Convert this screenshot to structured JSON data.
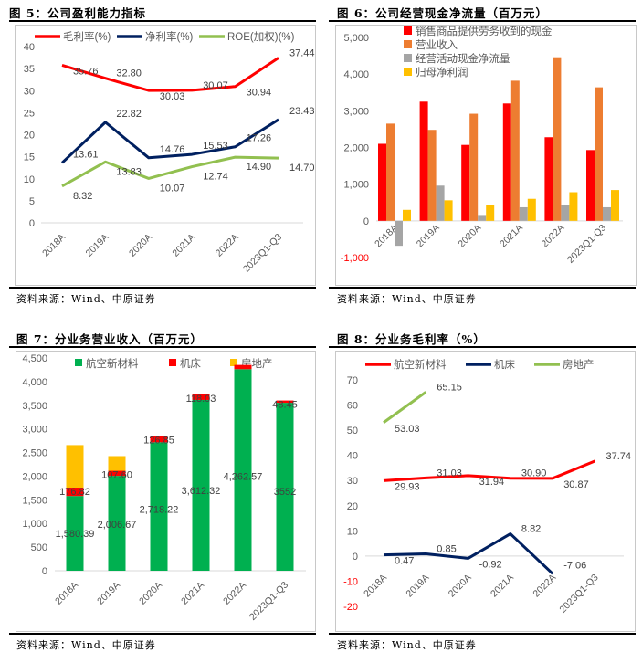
{
  "panels": [
    {
      "title": "图 5：公司盈利能力指标",
      "source": "资料来源：Wind、中原证券"
    },
    {
      "title": "图 6：公司经营现金净流量（百万元）",
      "source": "资料来源：Wind、中原证券"
    },
    {
      "title": "图 7：分业务营业收入（百万元）",
      "source": "资料来源：Wind、中原证券"
    },
    {
      "title": "图 8：分业务毛利率（%）",
      "source": "资料来源：Wind、中原证券"
    }
  ],
  "chart_data": [
    {
      "type": "line",
      "title": "公司盈利能力指标",
      "categories": [
        "2018A",
        "2019A",
        "2020A",
        "2021A",
        "2022A",
        "2023Q1-Q3"
      ],
      "ylim": [
        0,
        40
      ],
      "yticks": [
        0,
        5,
        10,
        15,
        20,
        25,
        30,
        35,
        40
      ],
      "legend": "top",
      "series": [
        {
          "name": "毛利率(%)",
          "color": "#ff0000",
          "values": [
            35.76,
            32.8,
            30.03,
            30.07,
            30.94,
            37.44
          ],
          "labels": [
            "35.76",
            "32.80",
            "30.03",
            "30.07",
            "30.94",
            "37.44"
          ]
        },
        {
          "name": "净利率(%)",
          "color": "#002060",
          "values": [
            13.61,
            22.82,
            14.76,
            15.53,
            17.26,
            23.43
          ],
          "labels": [
            "13.61",
            "22.82",
            "14.76",
            "15.53",
            "17.26",
            "23.43"
          ]
        },
        {
          "name": "ROE(加权)(%)",
          "color": "#92c050",
          "values": [
            8.32,
            13.83,
            10.07,
            12.74,
            14.9,
            14.7
          ],
          "labels": [
            "8.32",
            "13.83",
            "10.07",
            "12.74",
            "14.90",
            "14.70"
          ]
        }
      ]
    },
    {
      "type": "bar",
      "title": "公司经营现金净流量（百万元）",
      "categories": [
        "2018A",
        "2019A",
        "2020A",
        "2021A",
        "2022A",
        "2023Q1-Q3"
      ],
      "ylim": [
        -1000,
        5000
      ],
      "yticks": [
        -1000,
        0,
        1000,
        2000,
        3000,
        4000,
        5000
      ],
      "ytick_labels": [
        "-1,000",
        "0",
        "1,000",
        "2,000",
        "3,000",
        "4,000",
        "5,000"
      ],
      "legend": "top-right",
      "series": [
        {
          "name": "销售商品提供劳务收到的现金",
          "color": "#ff0000",
          "values": [
            2100,
            3250,
            2070,
            3200,
            2280,
            1930
          ]
        },
        {
          "name": "营业收入",
          "color": "#ed7d31",
          "values": [
            2650,
            2480,
            2920,
            3820,
            4460,
            3640
          ]
        },
        {
          "name": "经营活动现金净流量",
          "color": "#a5a5a5",
          "values": [
            -680,
            960,
            160,
            370,
            420,
            370
          ]
        },
        {
          "name": "归母净利润",
          "color": "#ffc000",
          "values": [
            300,
            560,
            420,
            600,
            780,
            840
          ]
        }
      ]
    },
    {
      "type": "bar",
      "stacked": true,
      "title": "分业务营业收入（百万元）",
      "categories": [
        "2018A",
        "2019A",
        "2020A",
        "2021A",
        "2022A",
        "2023Q1-Q3"
      ],
      "ylim": [
        0,
        4500
      ],
      "yticks": [
        0,
        500,
        1000,
        1500,
        2000,
        2500,
        3000,
        3500,
        4000,
        4500
      ],
      "ytick_labels": [
        "0",
        "500",
        "1,000",
        "1,500",
        "2,000",
        "2,500",
        "3,000",
        "3,500",
        "4,000",
        "4,500"
      ],
      "legend": "top",
      "series": [
        {
          "name": "航空新材料",
          "color": "#00b050",
          "values": [
            1580.39,
            2006.67,
            2718.22,
            3612.32,
            4262.57,
            3552
          ],
          "labels": [
            "1,580.39",
            "2,006.67",
            "2,718.22",
            "3,612.32",
            "4,262.57",
            "3552"
          ]
        },
        {
          "name": "机床",
          "color": "#ff0000",
          "values": [
            176.82,
            107.6,
            126.85,
            118.03,
            90,
            48.45
          ],
          "labels": [
            "176.82",
            "107.60",
            "126.85",
            "118.03",
            "",
            "48.45"
          ]
        },
        {
          "name": "房地产",
          "color": "#ffc000",
          "values": [
            900,
            310,
            0,
            0,
            0,
            0
          ]
        }
      ]
    },
    {
      "type": "line",
      "title": "分业务毛利率（%）",
      "categories": [
        "2018A",
        "2019A",
        "2020A",
        "2021A",
        "2022A",
        "2023Q1-Q3"
      ],
      "ylim": [
        -20,
        70
      ],
      "yticks": [
        -20,
        -10,
        0,
        10,
        20,
        30,
        40,
        50,
        60,
        70
      ],
      "legend": "top",
      "series": [
        {
          "name": "航空新材料",
          "color": "#ff0000",
          "values": [
            29.93,
            31.03,
            31.94,
            30.9,
            30.87,
            37.74
          ],
          "labels": [
            "29.93",
            "31.03",
            "31.94",
            "30.90",
            "30.87",
            "37.74"
          ]
        },
        {
          "name": "机床",
          "color": "#002060",
          "values": [
            0.47,
            0.85,
            -0.92,
            8.82,
            -7.06,
            null
          ],
          "labels": [
            "0.47",
            "0.85",
            "-0.92",
            "8.82",
            "-7.06",
            ""
          ]
        },
        {
          "name": "房地产",
          "color": "#92c050",
          "values": [
            53.03,
            65.15,
            null,
            null,
            null,
            null
          ],
          "labels": [
            "53.03",
            "65.15",
            "",
            "",
            "",
            ""
          ]
        }
      ]
    }
  ]
}
